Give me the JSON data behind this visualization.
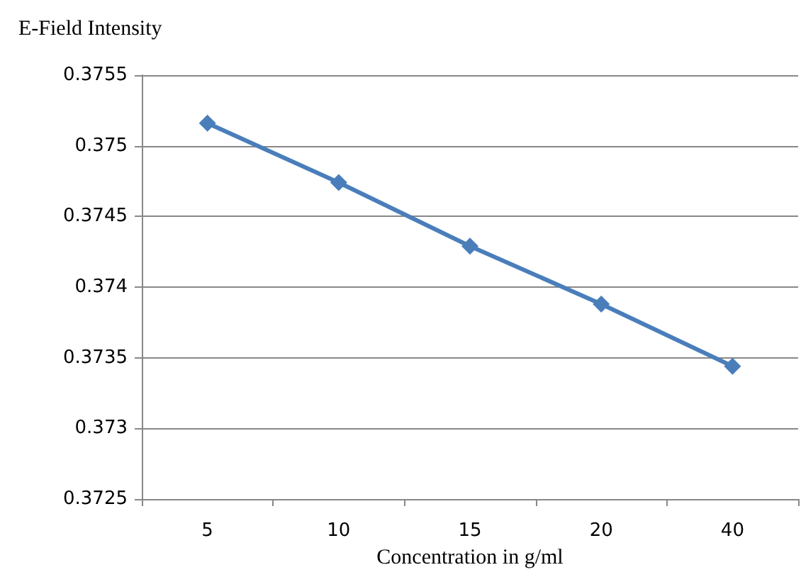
{
  "chart_data": {
    "type": "line",
    "title": "E-Field Intensity",
    "xlabel": "Concentration in g/ml",
    "categories": [
      "5",
      "10",
      "15",
      "20",
      "40"
    ],
    "series": [
      {
        "color": "#4a7ebb",
        "values": [
          0.37516,
          0.37474,
          0.37429,
          0.37388,
          0.37344
        ]
      }
    ],
    "ylim": [
      0.3725,
      0.3755
    ],
    "yticks": [
      0.3725,
      0.373,
      0.3735,
      0.374,
      0.3745,
      0.375,
      0.3755
    ],
    "grid": "y",
    "marker": "diamond",
    "line_style": "solid"
  }
}
